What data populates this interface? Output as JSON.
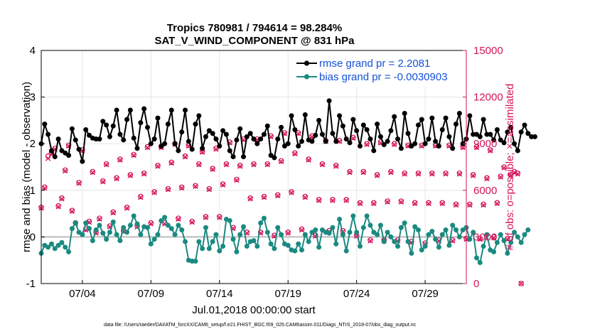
{
  "chart_data": {
    "type": "line",
    "title_line1": "Tropics 780981 / 794614 = 98.284%",
    "title_line2": "SAT_V_WIND_COMPONENT @ 831 hPa",
    "ylabel_left": "rmse and bias (model - observation)",
    "ylabel_right": "# of obs: o=possible; ×=assimilated",
    "xlabel": "Jul.01,2018 00:00:00 start",
    "footer": "data file: /Users/raeder/DAI/ATM_forcXX/CAM6_setup/f.e21.FHIST_BGC.f09_025.CAM6assim.011/Diags_NTrS_2018-07/obs_diag_output.nc",
    "x_tick_labels": [
      "07/04",
      "07/09",
      "07/14",
      "07/19",
      "07/24",
      "07/29"
    ],
    "x_tick_days": [
      4,
      9,
      14,
      19,
      24,
      29
    ],
    "x_range_days": [
      1.0,
      32.0
    ],
    "ylim_left": [
      -1,
      4
    ],
    "yticks_left": [
      "4",
      "3",
      "2",
      "1",
      "0",
      "-1"
    ],
    "ylim_right": [
      0,
      15000
    ],
    "yticks_right": [
      "15000",
      "12000",
      "9000",
      "6000",
      "3000",
      "0"
    ],
    "colors": {
      "rmse": "#000000",
      "bias": "#1a8a80",
      "obs": "#d4145a",
      "zero": "#bbbbbb"
    },
    "legend": [
      "rmse grand pr = 2.2081",
      "bias grand pr = -0.0030903"
    ],
    "legend_colors": [
      "#1550d8",
      "#1550d8"
    ],
    "step_hours": 6,
    "series": [
      {
        "name": "rmse",
        "values": [
          2.0,
          2.42,
          2.2,
          1.85,
          1.72,
          2.1,
          1.85,
          1.8,
          1.75,
          2.32,
          2.08,
          1.88,
          1.62,
          2.3,
          2.18,
          2.12,
          2.1,
          2.1,
          2.48,
          2.4,
          2.15,
          2.38,
          2.72,
          2.2,
          2.08,
          2.52,
          2.72,
          2.12,
          1.9,
          2.45,
          2.75,
          2.35,
          2.0,
          2.1,
          2.55,
          1.95,
          2.0,
          2.42,
          2.72,
          2.0,
          1.85,
          2.25,
          2.72,
          2.05,
          1.88,
          2.42,
          2.6,
          1.9,
          2.15,
          2.28,
          2.22,
          2.1,
          1.95,
          2.28,
          2.2,
          1.85,
          1.72,
          2.08,
          2.32,
          1.72,
          2.15,
          2.22,
          2.1,
          2.0,
          2.1,
          2.2,
          2.38,
          1.75,
          1.7,
          2.1,
          2.35,
          1.95,
          2.0,
          2.6,
          2.3,
          1.95,
          2.05,
          2.62,
          2.08,
          2.05,
          2.18,
          2.5,
          2.2,
          2.05,
          2.92,
          2.22,
          2.05,
          2.6,
          2.38,
          2.1,
          2.02,
          2.52,
          2.28,
          1.95,
          2.4,
          2.3,
          2.1,
          1.85,
          2.42,
          2.15,
          1.98,
          2.05,
          2.28,
          2.58,
          2.1,
          1.9,
          2.65,
          2.22,
          1.95,
          2.0,
          2.4,
          2.52,
          2.0,
          2.1,
          2.55,
          2.05,
          1.95,
          2.3,
          2.55,
          2.15,
          1.9,
          2.42,
          2.65,
          2.0,
          2.1,
          2.6,
          2.2,
          2.2,
          2.15,
          2.52,
          2.2,
          2.2,
          2.08,
          2.3,
          2.08,
          2.02,
          2.25,
          2.35,
          2.0,
          1.85,
          2.25,
          2.4,
          2.22,
          2.15,
          2.15
        ]
      },
      {
        "name": "bias",
        "values": [
          -0.35,
          -0.18,
          -0.22,
          -0.15,
          -0.25,
          -0.18,
          -0.12,
          -0.22,
          -0.32,
          0.18,
          0.3,
          0.1,
          0.05,
          0.3,
          0.18,
          -0.08,
          0.15,
          0.25,
          0.08,
          -0.05,
          0.1,
          0.32,
          0.05,
          -0.08,
          0.2,
          0.1,
          0.25,
          0.45,
          0.28,
          0.05,
          0.22,
          0.2,
          -0.15,
          -0.05,
          0.05,
          0.35,
          0.42,
          0.25,
          0.18,
          0.05,
          0.25,
          0.15,
          -0.1,
          -0.5,
          -0.52,
          -0.52,
          -0.1,
          -0.25,
          0.2,
          -0.25,
          -0.1,
          0.05,
          -0.3,
          -0.2,
          0.38,
          0.35,
          -0.05,
          -0.32,
          0.05,
          0.22,
          -0.2,
          -0.1,
          -0.08,
          -0.2,
          0.3,
          0.4,
          0.1,
          -0.15,
          -0.25,
          0.2,
          0.05,
          -0.15,
          -0.18,
          -0.28,
          -0.3,
          -0.15,
          -0.28,
          0.05,
          -0.1,
          0.1,
          0.15,
          -0.22,
          0.15,
          0.1,
          0.08,
          0.2,
          -0.15,
          0.38,
          0.05,
          -0.3,
          0.1,
          0.45,
          0.1,
          -0.2,
          0.2,
          0.45,
          0.25,
          0.1,
          0.05,
          0.25,
          -0.1,
          0.1,
          0.0,
          -0.1,
          -0.2,
          0.2,
          0.3,
          -0.1,
          -0.35,
          0.22,
          0.15,
          -0.28,
          -0.2,
          0.05,
          0.12,
          -0.05,
          -0.22,
          0.05,
          0.15,
          -0.18,
          0.25,
          0.15,
          0.0,
          0.15,
          0.2,
          -0.05,
          0.1,
          -0.45,
          -0.55,
          -0.2,
          0.05,
          -0.28,
          -0.32,
          -0.12,
          0.05,
          -0.08,
          -0.35,
          -0.12,
          0.1,
          0.0,
          -0.12,
          0.05,
          0.15
        ]
      },
      {
        "name": "obs_possible",
        "values": [
          4900,
          6200,
          8200,
          8400,
          8700,
          5000,
          5500,
          7300,
          8900,
          4700,
          3900,
          6500,
          8600,
          3500,
          4000,
          7200,
          3300,
          4200,
          6600,
          7700,
          3700,
          4600,
          6800,
          8000,
          3400,
          4900,
          7000,
          8300,
          3700,
          5600,
          7100,
          8800,
          3900,
          5900,
          7600,
          8800,
          3900,
          6100,
          7800,
          9000,
          4200,
          6200,
          8200,
          8900,
          4000,
          6300,
          7700,
          8500,
          4300,
          6100,
          7400,
          8700,
          4300,
          6400,
          7700,
          9100,
          3600,
          6700,
          7600,
          9300,
          3300,
          5500,
          7700,
          9300,
          3300,
          5600,
          7700,
          9500,
          3100,
          5700,
          7900,
          9700,
          3300,
          5900,
          8400,
          9700,
          3500,
          5600,
          8000,
          9500,
          3100,
          5400,
          7700,
          9200,
          3400,
          5400,
          7600,
          9200,
          3400,
          5400,
          7200,
          9400,
          3100,
          5200,
          7200,
          9000,
          2800,
          5200,
          7000,
          9100,
          2800,
          5300,
          7200,
          9000,
          2800,
          5300,
          7100,
          8900,
          2700,
          5200,
          7100,
          8900,
          2600,
          5200,
          7100,
          8900,
          2800,
          5200,
          7100,
          8900,
          2800,
          5100,
          7100,
          8800,
          2900,
          5100,
          7000,
          8800,
          2900,
          5100,
          6800,
          8600,
          3000,
          5200,
          6900,
          7500,
          2900,
          7000,
          7200,
          7100,
          0
        ]
      },
      {
        "name": "obs_assimilated",
        "values": [
          4850,
          6150,
          8050,
          8350,
          8650,
          4950,
          5450,
          7250,
          8850,
          4650,
          3850,
          6450,
          8550,
          3450,
          3950,
          7150,
          3250,
          4150,
          6550,
          7650,
          3650,
          4550,
          6750,
          7950,
          3350,
          4850,
          6950,
          8250,
          3650,
          5550,
          7050,
          8750,
          3850,
          5850,
          7550,
          8750,
          3850,
          6050,
          7750,
          8950,
          4150,
          6150,
          8150,
          8850,
          3950,
          6250,
          7650,
          8450,
          4250,
          6050,
          7350,
          8650,
          4250,
          6350,
          7650,
          9050,
          3550,
          6650,
          7550,
          9250,
          3250,
          5450,
          7650,
          9250,
          3250,
          5550,
          7650,
          9450,
          3050,
          5650,
          7850,
          9650,
          3250,
          5850,
          8350,
          9650,
          3450,
          5550,
          7950,
          9450,
          3050,
          5350,
          7650,
          9150,
          3350,
          5350,
          7550,
          9150,
          3350,
          5350,
          7150,
          9350,
          3050,
          5150,
          7150,
          8950,
          2750,
          5150,
          6950,
          9050,
          2750,
          5250,
          7150,
          8950,
          2750,
          5250,
          7050,
          8850,
          2650,
          5150,
          7050,
          8850,
          2550,
          5150,
          7050,
          8850,
          2750,
          5150,
          7050,
          8850,
          2750,
          5050,
          7050,
          8750,
          2850,
          5050,
          6950,
          8750,
          2850,
          5050,
          6750,
          8550,
          2950,
          5150,
          6850,
          7450,
          2850,
          6950,
          7150,
          7050,
          0
        ]
      }
    ]
  }
}
